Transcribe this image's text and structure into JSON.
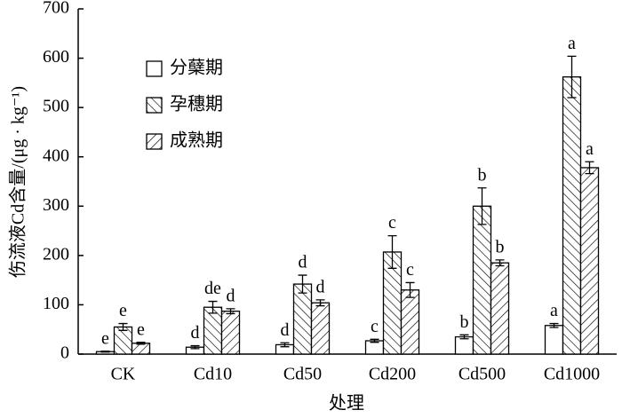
{
  "chart_data": {
    "type": "bar",
    "ylabel": "伤流液Cd含量/(μg · kg⁻¹)",
    "xlabel": "处理",
    "categories": [
      "CK",
      "Cd10",
      "Cd50",
      "Cd200",
      "Cd500",
      "Cd1000"
    ],
    "series": [
      {
        "name": "分蘖期",
        "color": "#000000",
        "hatch": "none",
        "values": [
          5,
          14,
          19,
          27,
          35,
          58
        ],
        "errors": [
          1,
          3,
          4,
          3,
          4,
          4
        ],
        "significance": [
          "e",
          "d",
          "d",
          "c",
          "b",
          "a"
        ]
      },
      {
        "name": "孕穗期",
        "color": "#000000",
        "hatch": "back",
        "values": [
          55,
          95,
          142,
          207,
          300,
          562
        ],
        "errors": [
          7,
          12,
          18,
          33,
          37,
          42
        ],
        "significance": [
          "e",
          "de",
          "d",
          "c",
          "b",
          "a"
        ]
      },
      {
        "name": "成熟期",
        "color": "#000000",
        "hatch": "forward",
        "values": [
          22,
          87,
          104,
          130,
          185,
          378
        ],
        "errors": [
          2,
          5,
          6,
          15,
          6,
          12
        ],
        "significance": [
          "e",
          "d",
          "d",
          "c",
          "b",
          "a"
        ]
      }
    ],
    "ylim": [
      0,
      700
    ],
    "yticks": [
      0,
      100,
      200,
      300,
      400,
      500,
      600,
      700
    ],
    "legend": "upper left",
    "grid": false
  }
}
